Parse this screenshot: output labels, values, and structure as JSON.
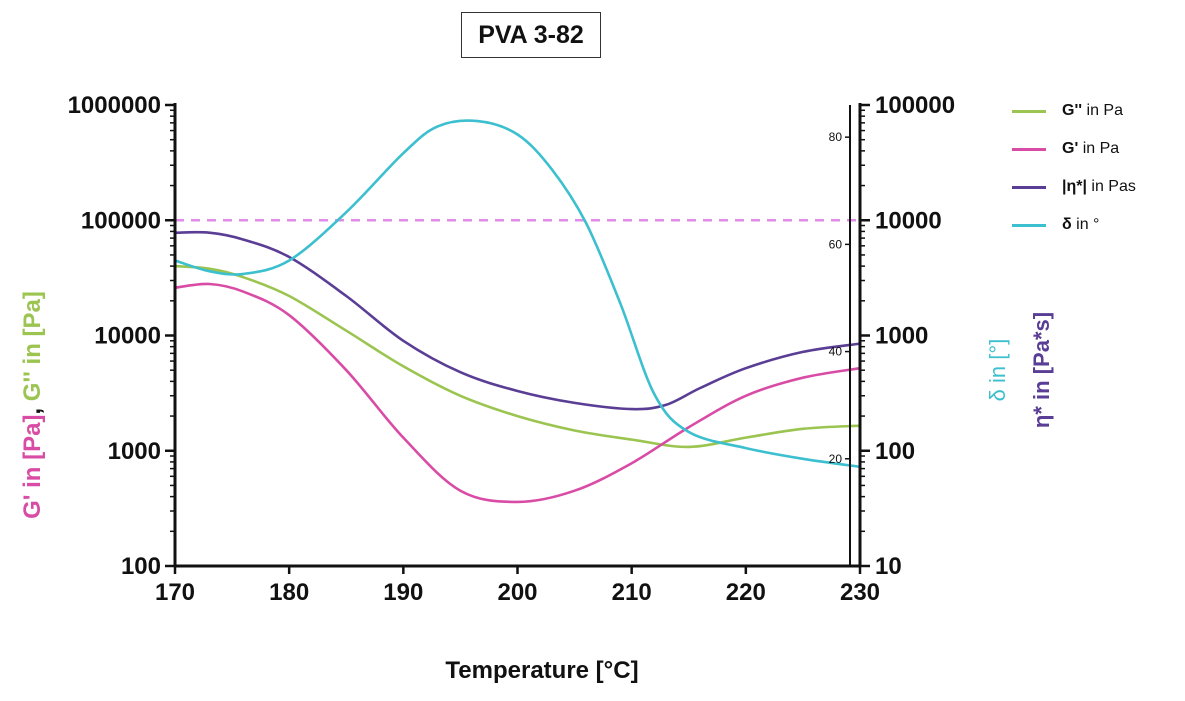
{
  "chart_data": {
    "type": "line",
    "title": "PVA 3-82",
    "xlabel": "Temperature [°C]",
    "xlim": [
      170,
      230
    ],
    "x_ticks": [
      "170",
      "180",
      "190",
      "200",
      "210",
      "220",
      "230"
    ],
    "y_left": {
      "label_parts": [
        {
          "text": "G' in [Pa]",
          "color": "#d94ca6"
        },
        {
          "text": ", ",
          "color": "#111111"
        },
        {
          "text": "G'' in [Pa]",
          "color": "#9bc450"
        }
      ],
      "scale": "log",
      "range": [
        100,
        1000000
      ],
      "ticks": [
        "100",
        "1000",
        "10000",
        "100000",
        "1000000"
      ]
    },
    "y_delta": {
      "label": "δ in [°]",
      "color": "#3cbfcf",
      "scale": "linear",
      "range": [
        0,
        86
      ],
      "ticks": [
        "20",
        "40",
        "60",
        "80"
      ]
    },
    "y_eta": {
      "label": "η* in [Pa*s]",
      "color": "#5a3d94",
      "scale": "log",
      "range": [
        10,
        100000
      ],
      "ticks": [
        "10",
        "100",
        "1000",
        "10000",
        "100000"
      ]
    },
    "reference_line": {
      "axis": "left",
      "value": 100000,
      "color": "#e08ce8",
      "style": "dashed"
    },
    "series": [
      {
        "name_bold": "G''",
        "name_rest": " in Pa",
        "axis": "left",
        "color": "#9bc450",
        "x": [
          170,
          173,
          176,
          180,
          185,
          190,
          195,
          200,
          205,
          210,
          215,
          220,
          225,
          230
        ],
        "y": [
          40000,
          38000,
          32000,
          22000,
          11000,
          5400,
          3000,
          2000,
          1500,
          1250,
          1080,
          1300,
          1550,
          1650
        ]
      },
      {
        "name_bold": "G'",
        "name_rest": " in Pa",
        "axis": "left",
        "color": "#d94ca6",
        "x": [
          170,
          173,
          176,
          180,
          185,
          190,
          195,
          200,
          205,
          210,
          215,
          220,
          225,
          230
        ],
        "y": [
          26000,
          28000,
          24000,
          15000,
          5000,
          1300,
          450,
          360,
          450,
          780,
          1600,
          3000,
          4300,
          5200
        ]
      },
      {
        "name_bold": "|η*|",
        "name_rest": " in Pas",
        "axis": "eta",
        "color": "#5a3d94",
        "x": [
          170,
          173,
          176,
          180,
          185,
          190,
          195,
          200,
          205,
          210,
          213,
          216,
          220,
          225,
          230
        ],
        "y": [
          7800,
          7800,
          6800,
          4800,
          2200,
          900,
          480,
          330,
          260,
          230,
          250,
          350,
          520,
          720,
          850
        ]
      },
      {
        "name_bold": "δ",
        "name_rest": " in °",
        "axis": "delta",
        "color": "#3cbfcf",
        "x": [
          170,
          173,
          176,
          180,
          185,
          190,
          193,
          196.5,
          200,
          203,
          206,
          209,
          212,
          215,
          220,
          225,
          230
        ],
        "y": [
          57,
          55,
          54.5,
          57,
          66,
          77,
          82,
          83,
          80.5,
          74,
          64,
          49,
          32,
          25,
          22,
          20,
          18.5
        ]
      }
    ]
  }
}
